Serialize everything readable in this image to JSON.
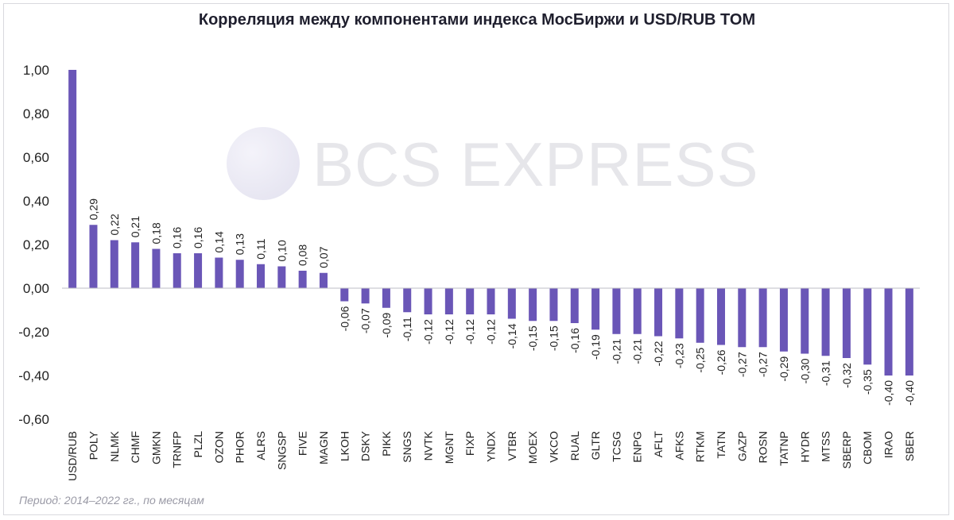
{
  "chart_data": {
    "type": "bar",
    "title": "Корреляция между компонентами индекса МосБиржи и USD/RUB TOM",
    "watermark": "BCS EXPRESS",
    "footnote": "Период: 2014–2022 гг., по месяцам",
    "ylim": [
      -0.6,
      1.0
    ],
    "yticks": [
      1.0,
      0.8,
      0.6,
      0.4,
      0.2,
      0.0,
      -0.2,
      -0.4,
      -0.6
    ],
    "ytick_labels": [
      "1,00",
      "0,80",
      "0,60",
      "0,40",
      "0,20",
      "0,00",
      "-0,20",
      "-0,40",
      "-0,60"
    ],
    "bar_color": "#6a56b7",
    "categories": [
      "USD/RUB",
      "POLY",
      "NLMK",
      "CHMF",
      "GMKN",
      "TRNFP",
      "PLZL",
      "OZON",
      "PHOR",
      "ALRS",
      "SNGSP",
      "FIVE",
      "MAGN",
      "LKOH",
      "DSKY",
      "PIKK",
      "SNGS",
      "NVTK",
      "MGNT",
      "FIXP",
      "YNDX",
      "VTBR",
      "MOEX",
      "VKCO",
      "RUAL",
      "GLTR",
      "TCSG",
      "ENPG",
      "AFLT",
      "AFKS",
      "RTKM",
      "TATN",
      "GAZP",
      "ROSN",
      "TATNP",
      "HYDR",
      "MTSS",
      "SBERP",
      "CBOM",
      "IRAO",
      "SBER"
    ],
    "values": [
      1.0,
      0.29,
      0.22,
      0.21,
      0.18,
      0.16,
      0.16,
      0.14,
      0.13,
      0.11,
      0.1,
      0.08,
      0.07,
      -0.06,
      -0.07,
      -0.09,
      -0.11,
      -0.12,
      -0.12,
      -0.12,
      -0.12,
      -0.14,
      -0.15,
      -0.15,
      -0.16,
      -0.19,
      -0.21,
      -0.21,
      -0.22,
      -0.23,
      -0.25,
      -0.26,
      -0.27,
      -0.27,
      -0.29,
      -0.3,
      -0.31,
      -0.32,
      -0.35,
      -0.4,
      -0.4
    ],
    "value_labels": [
      "",
      "0,29",
      "0,22",
      "0,21",
      "0,18",
      "0,16",
      "0,16",
      "0,14",
      "0,13",
      "0,11",
      "0,10",
      "0,08",
      "0,07",
      "-0,06",
      "-0,07",
      "-0,09",
      "-0,11",
      "-0,12",
      "-0,12",
      "-0,12",
      "-0,12",
      "-0,14",
      "-0,15",
      "-0,15",
      "-0,16",
      "-0,19",
      "-0,21",
      "-0,21",
      "-0,22",
      "-0,23",
      "-0,25",
      "-0,26",
      "-0,27",
      "-0,27",
      "-0,29",
      "-0,30",
      "-0,31",
      "-0,32",
      "-0,35",
      "-0,40",
      "-0,40"
    ]
  }
}
